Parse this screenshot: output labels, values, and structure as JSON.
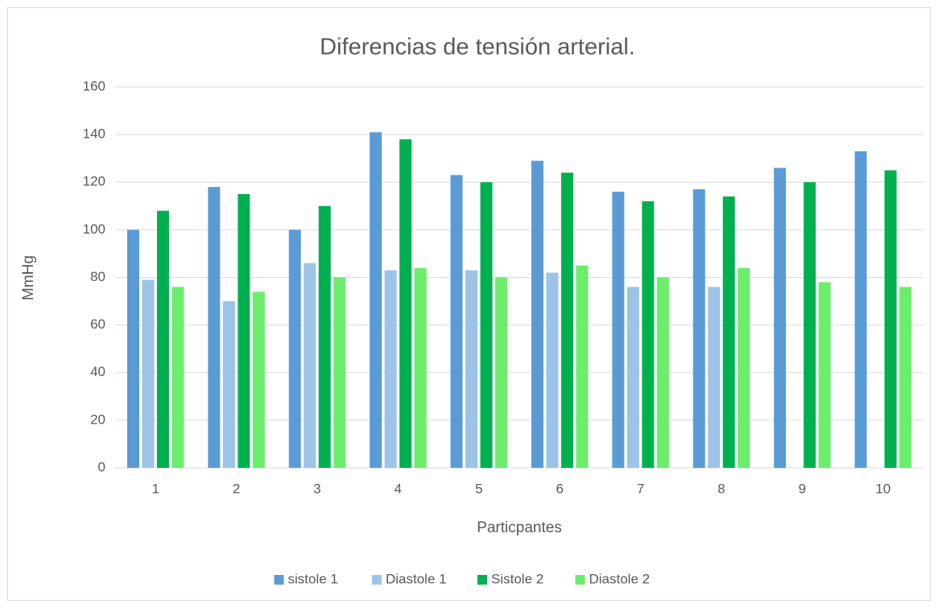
{
  "chart_data": {
    "type": "bar",
    "title": "Diferencias de tensión arterial.",
    "x_label": "Particpantes",
    "y_label": "MmHg",
    "categories": [
      "1",
      "2",
      "3",
      "4",
      "5",
      "6",
      "7",
      "8",
      "9",
      "10"
    ],
    "series": [
      {
        "name": "sistole 1",
        "color": "#5b9bd5",
        "values": [
          100,
          118,
          100,
          141,
          123,
          129,
          116,
          117,
          126,
          133
        ]
      },
      {
        "name": "Diastole 1",
        "color": "#9dc3e6",
        "values": [
          79,
          70,
          86,
          83,
          83,
          82,
          76,
          76,
          null,
          null
        ]
      },
      {
        "name": "Sistole 2",
        "color": "#00b050",
        "values": [
          108,
          115,
          110,
          138,
          120,
          124,
          112,
          114,
          120,
          125
        ]
      },
      {
        "name": "Diastole 2",
        "color": "#6cee6c",
        "values": [
          76,
          74,
          80,
          84,
          80,
          85,
          80,
          84,
          78,
          76
        ]
      }
    ],
    "ylim": [
      0,
      160
    ],
    "yticks": [
      0,
      20,
      40,
      60,
      80,
      100,
      120,
      140,
      160
    ],
    "grid": true,
    "legend": "bottom"
  }
}
